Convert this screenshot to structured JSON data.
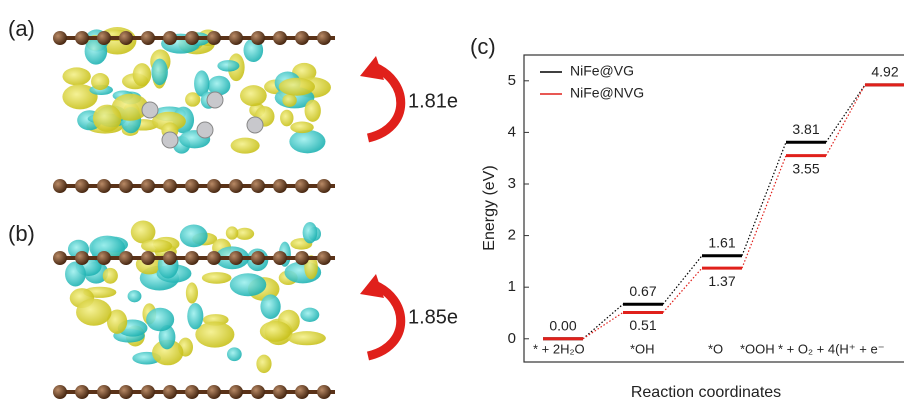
{
  "panels": [
    {
      "label": "(a)",
      "charge": "1.81e"
    },
    {
      "label": "(b)",
      "charge": "1.85e"
    }
  ],
  "chart_data": {
    "type": "energy-levels",
    "panel_label": "(c)",
    "x_label": "Reaction coordinates",
    "y_label": "Energy (eV)",
    "categories": [
      "* + 2H₂O",
      "*OH",
      "*O",
      "*OOH",
      "* + O₂ + 4(H⁺ + e⁻"
    ],
    "series": [
      {
        "name": "NiFe@VG",
        "color": "#000000",
        "values": [
          0,
          0.67,
          1.61,
          3.81,
          4.92
        ],
        "value_labels": [
          "0.00",
          "0.67",
          "1.61",
          "3.81",
          "4.92"
        ]
      },
      {
        "name": "NiFe@NVG",
        "color": "#e0201b",
        "values": [
          0,
          0.51,
          1.37,
          3.55,
          4.92
        ],
        "value_labels": [
          null,
          "0.51",
          "1.37",
          "3.55",
          null
        ]
      }
    ],
    "ylim": [
      -0.45,
      5.5
    ],
    "yticks": [
      0,
      1,
      2,
      3,
      4,
      5
    ],
    "legend": "top-left"
  }
}
